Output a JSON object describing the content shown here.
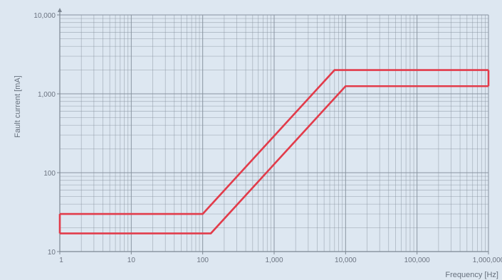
{
  "chart_data": {
    "type": "line",
    "title": "",
    "xlabel": "Frequency [Hz]",
    "ylabel": "Fault current [mA]",
    "x_scale": "log",
    "y_scale": "log",
    "xlim": [
      1,
      1000000
    ],
    "ylim": [
      10,
      10000
    ],
    "x_ticks": [
      1,
      10,
      100,
      1000,
      10000,
      100000,
      1000000
    ],
    "x_tick_labels": [
      "1",
      "10",
      "100",
      "1,000",
      "10,000",
      "100,000",
      "1,000,000"
    ],
    "y_ticks": [
      10,
      100,
      1000,
      10000
    ],
    "y_tick_labels": [
      "10",
      "100",
      "1,000",
      "10,000"
    ],
    "grid": true,
    "series": [
      {
        "x": [
          1,
          100,
          7000,
          1000000
        ],
        "y": [
          30,
          30,
          2000,
          2000
        ]
      },
      {
        "x": [
          1,
          130,
          10000,
          1000000
        ],
        "y": [
          17,
          17,
          1250,
          1250
        ]
      }
    ],
    "band_edges": [
      {
        "x": 1,
        "y": [
          17,
          30
        ]
      },
      {
        "x": 1000000,
        "y": [
          1250,
          2000
        ]
      }
    ],
    "line_color": "#e23b4a",
    "grid_color": "#87929e",
    "background_color": "#dde7f1"
  }
}
